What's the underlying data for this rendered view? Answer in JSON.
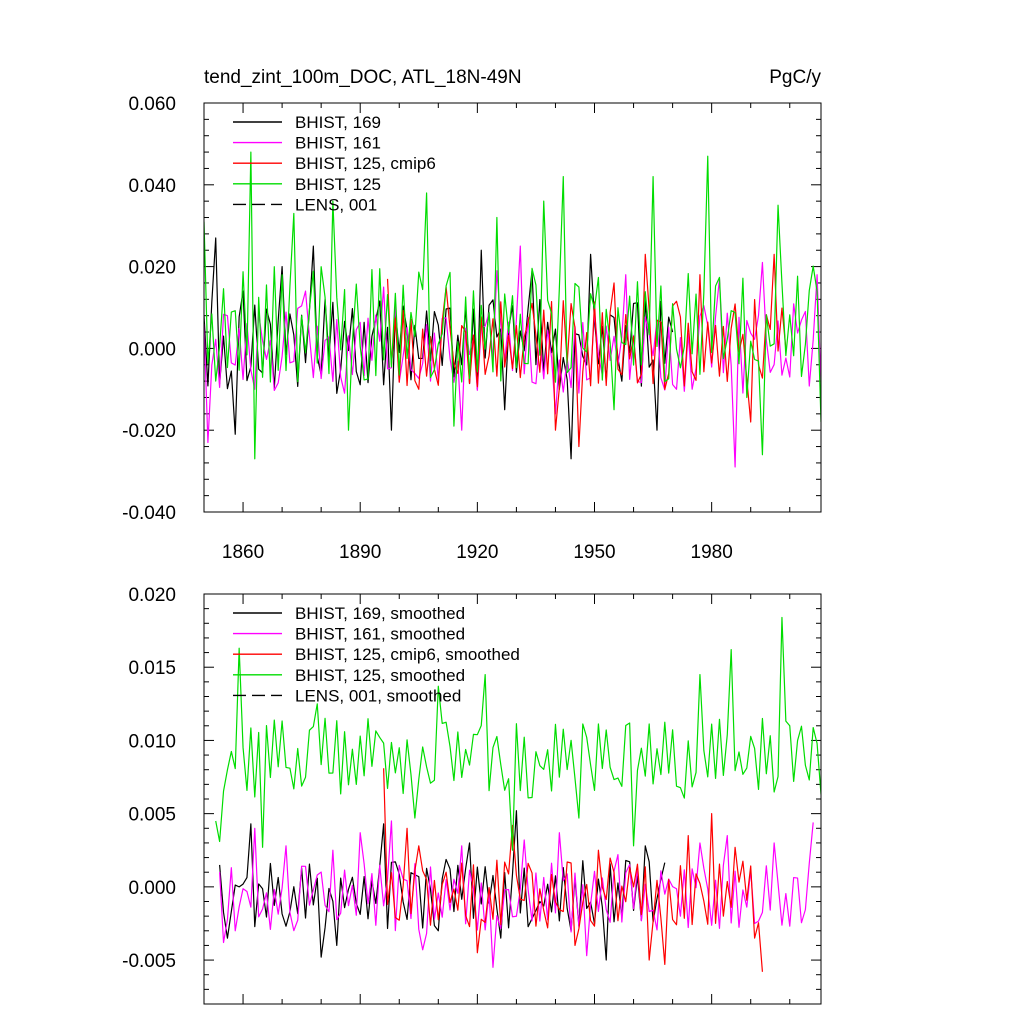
{
  "chart_data": [
    {
      "type": "line",
      "title_left": "tend_zint_100m_DOC, ATL_18N-49N",
      "title_right": "PgC/y",
      "xlabel": "",
      "ylabel": "",
      "xlim": [
        1850,
        2008
      ],
      "ylim": [
        -0.04,
        0.06
      ],
      "x_ticks": [
        1860,
        1890,
        1920,
        1950,
        1980
      ],
      "x_tick_labels": [
        "1860",
        "1890",
        "1920",
        "1950",
        "1980"
      ],
      "y_ticks": [
        -0.04,
        -0.02,
        0.0,
        0.02,
        0.04,
        0.06
      ],
      "y_tick_labels": [
        "-0.040",
        "-0.020",
        "0.000",
        "0.020",
        "0.040",
        "0.060"
      ],
      "legend_position": "top-left",
      "series": [
        {
          "name": "BHIST, 169",
          "color": "#000000",
          "dash": "solid",
          "start": 1850,
          "end": 1970,
          "amp": 0.01,
          "mean": 0.001,
          "seed": 7,
          "points": [
            [
              1850,
              0.008
            ],
            [
              1853,
              0.027
            ],
            [
              1858,
              -0.021
            ],
            [
              1860,
              0.014
            ],
            [
              1865,
              -0.006
            ],
            [
              1870,
              0.02
            ],
            [
              1878,
              0.025
            ],
            [
              1884,
              -0.011
            ],
            [
              1893,
              0.003
            ],
            [
              1898,
              -0.02
            ],
            [
              1909,
              0.009
            ],
            [
              1916,
              -0.004
            ],
            [
              1921,
              0.024
            ],
            [
              1927,
              -0.015
            ],
            [
              1934,
              0.019
            ],
            [
              1941,
              -0.01
            ],
            [
              1944,
              -0.027
            ],
            [
              1949,
              0.023
            ],
            [
              1960,
              0.011
            ],
            [
              1966,
              -0.02
            ],
            [
              1970,
              0.004
            ]
          ]
        },
        {
          "name": "BHIST, 161",
          "color": "#ff00ff",
          "dash": "solid",
          "start": 1850,
          "end": 2008,
          "amp": 0.01,
          "mean": 0.0,
          "seed": 11,
          "points": [
            [
              1850,
              0.006
            ],
            [
              1851,
              -0.023
            ],
            [
              1856,
              0.008
            ],
            [
              1863,
              -0.01
            ],
            [
              1876,
              0.014
            ],
            [
              1885,
              -0.007
            ],
            [
              1896,
              0.015
            ],
            [
              1916,
              -0.02
            ],
            [
              1925,
              0.019
            ],
            [
              1931,
              0.025
            ],
            [
              1940,
              -0.016
            ],
            [
              1958,
              0.018
            ],
            [
              1971,
              -0.01
            ],
            [
              1982,
              0.017
            ],
            [
              1986,
              -0.029
            ],
            [
              1993,
              0.021
            ],
            [
              2000,
              -0.007
            ],
            [
              2007,
              0.018
            ]
          ]
        },
        {
          "name": "BHIST, 125, cmip6",
          "color": "#ff0000",
          "dash": "solid",
          "start": 1897,
          "end": 1999,
          "amp": 0.01,
          "mean": 0.001,
          "seed": 23,
          "points": [
            [
              1897,
              0.017
            ],
            [
              1905,
              -0.01
            ],
            [
              1912,
              0.015
            ],
            [
              1917,
              0.004
            ],
            [
              1934,
              0.011
            ],
            [
              1940,
              -0.02
            ],
            [
              1946,
              -0.024
            ],
            [
              1955,
              0.016
            ],
            [
              1963,
              0.023
            ],
            [
              1968,
              -0.01
            ],
            [
              1977,
              0.018
            ],
            [
              1990,
              -0.018
            ],
            [
              1996,
              0.023
            ],
            [
              1999,
              0.0
            ]
          ]
        },
        {
          "name": "BHIST, 125",
          "color": "#00dd00",
          "dash": "solid",
          "start": 1850,
          "end": 2008,
          "amp": 0.013,
          "mean": 0.006,
          "seed": 37,
          "points": [
            [
              1850,
              0.031
            ],
            [
              1853,
              -0.008
            ],
            [
              1862,
              0.048
            ],
            [
              1863,
              -0.027
            ],
            [
              1873,
              0.033
            ],
            [
              1883,
              0.036
            ],
            [
              1887,
              -0.02
            ],
            [
              1907,
              0.038
            ],
            [
              1914,
              -0.019
            ],
            [
              1925,
              0.032
            ],
            [
              1937,
              0.036
            ],
            [
              1942,
              0.042
            ],
            [
              1955,
              -0.015
            ],
            [
              1965,
              0.042
            ],
            [
              1979,
              0.047
            ],
            [
              1989,
              -0.012
            ],
            [
              1993,
              -0.026
            ],
            [
              1997,
              0.035
            ],
            [
              2008,
              -0.018
            ]
          ]
        },
        {
          "name": "LENS, 001",
          "color": "#000000",
          "dash": "dashed",
          "start": null,
          "end": null,
          "points": []
        }
      ]
    },
    {
      "type": "line",
      "title_left": "",
      "title_right": "",
      "xlabel": "",
      "ylabel": "",
      "xlim": [
        1850,
        2008
      ],
      "ylim": [
        -0.008,
        0.02
      ],
      "x_ticks": [
        1860,
        1890,
        1920,
        1950,
        1980
      ],
      "x_tick_labels": [],
      "y_ticks": [
        -0.005,
        0.0,
        0.005,
        0.01,
        0.015,
        0.02
      ],
      "y_tick_labels": [
        "-0.005",
        "0.000",
        "0.005",
        "0.010",
        "0.015",
        "0.020"
      ],
      "legend_position": "top-left",
      "series": [
        {
          "name": "BHIST, 169, smoothed",
          "color": "#000000",
          "dash": "solid",
          "start": 1854,
          "end": 1968,
          "amp": 0.0022,
          "mean": -0.0005,
          "seed": 101,
          "points": [
            [
              1854,
              0.0015
            ],
            [
              1856,
              -0.0035
            ],
            [
              1859,
              0.0
            ],
            [
              1862,
              0.0043
            ],
            [
              1864,
              0.0002
            ],
            [
              1872,
              -0.0017
            ],
            [
              1880,
              -0.0048
            ],
            [
              1884,
              -0.004
            ],
            [
              1891,
              0.0007
            ],
            [
              1896,
              0.0043
            ],
            [
              1905,
              0.0007
            ],
            [
              1910,
              -0.003
            ],
            [
              1918,
              0.003
            ],
            [
              1926,
              -0.0035
            ],
            [
              1930,
              0.0052
            ],
            [
              1936,
              -0.001
            ],
            [
              1944,
              -0.003
            ],
            [
              1953,
              -0.005
            ],
            [
              1958,
              0.0018
            ],
            [
              1963,
              0.0028
            ],
            [
              1966,
              -0.0008
            ]
          ]
        },
        {
          "name": "BHIST, 161, smoothed",
          "color": "#ff00ff",
          "dash": "solid",
          "start": 1854,
          "end": 2006,
          "amp": 0.0022,
          "mean": -0.0008,
          "seed": 113,
          "points": [
            [
              1854,
              0.001
            ],
            [
              1855,
              -0.0038
            ],
            [
              1858,
              -0.003
            ],
            [
              1863,
              0.004
            ],
            [
              1871,
              0.0028
            ],
            [
              1883,
              0.0025
            ],
            [
              1890,
              0.0037
            ],
            [
              1898,
              0.0045
            ],
            [
              1906,
              -0.0043
            ],
            [
              1916,
              0.0028
            ],
            [
              1924,
              -0.0055
            ],
            [
              1932,
              0.0032
            ],
            [
              1941,
              0.0037
            ],
            [
              1948,
              -0.0047
            ],
            [
              1956,
              0.0022
            ],
            [
              1968,
              -0.0005
            ],
            [
              1977,
              0.003
            ],
            [
              1984,
              0.0035
            ],
            [
              1991,
              -0.0025
            ],
            [
              1996,
              0.003
            ],
            [
              2002,
              0.0006
            ],
            [
              2006,
              0.0044
            ]
          ]
        },
        {
          "name": "BHIST, 125, cmip6, smoothed",
          "color": "#ff0000",
          "dash": "solid",
          "start": 1896,
          "end": 1993,
          "amp": 0.0023,
          "mean": -0.0005,
          "seed": 131,
          "points": [
            [
              1896,
              0.0081
            ],
            [
              1902,
              0.004
            ],
            [
              1905,
              0.0028
            ],
            [
              1912,
              0.001
            ],
            [
              1920,
              -0.0045
            ],
            [
              1929,
              0.0042
            ],
            [
              1938,
              -0.0028
            ],
            [
              1945,
              -0.004
            ],
            [
              1951,
              0.0025
            ],
            [
              1960,
              0.0
            ],
            [
              1964,
              -0.005
            ],
            [
              1968,
              -0.0053
            ],
            [
              1974,
              0.0035
            ],
            [
              1980,
              0.005
            ],
            [
              1986,
              0.0027
            ],
            [
              1991,
              -0.0035
            ],
            [
              1993,
              -0.0058
            ]
          ]
        },
        {
          "name": "BHIST, 125, smoothed",
          "color": "#00dd00",
          "dash": "solid",
          "start": 1853,
          "end": 2008,
          "amp": 0.0025,
          "mean": 0.0088,
          "seed": 149,
          "points": [
            [
              1853,
              0.0045
            ],
            [
              1854,
              0.0031
            ],
            [
              1859,
              0.0163
            ],
            [
              1865,
              0.0027
            ],
            [
              1879,
              0.0125
            ],
            [
              1890,
              0.0103
            ],
            [
              1904,
              0.0047
            ],
            [
              1910,
              0.0137
            ],
            [
              1922,
              0.0145
            ],
            [
              1929,
              0.0025
            ],
            [
              1946,
              0.0047
            ],
            [
              1960,
              0.0028
            ],
            [
              1977,
              0.0145
            ],
            [
              1985,
              0.0162
            ],
            [
              1998,
              0.0184
            ],
            [
              2000,
              0.011
            ],
            [
              2005,
              0.0073
            ]
          ]
        },
        {
          "name": "LENS, 001, smoothed",
          "color": "#000000",
          "dash": "dashed",
          "start": null,
          "end": null,
          "points": []
        }
      ]
    }
  ]
}
